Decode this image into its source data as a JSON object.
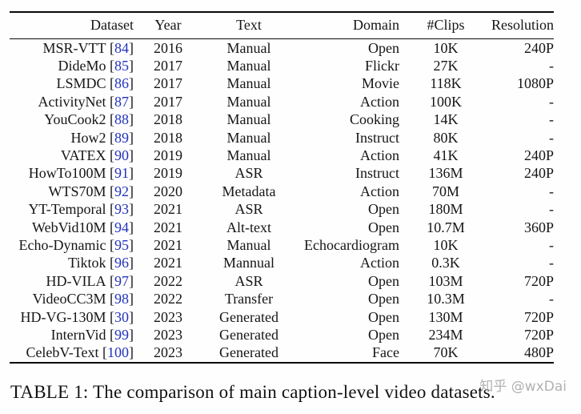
{
  "table": {
    "columns": [
      {
        "label": "Dataset",
        "align": "right"
      },
      {
        "label": "Year",
        "align": "center"
      },
      {
        "label": "Text",
        "align": "center"
      },
      {
        "label": "Domain",
        "align": "right"
      },
      {
        "label": "#Clips",
        "align": "center"
      },
      {
        "label": "Resolution",
        "align": "right"
      }
    ],
    "citation_brackets": {
      "open": "[",
      "close": "]"
    },
    "rows": [
      {
        "name": "MSR-VTT",
        "ref": "84",
        "year": "2016",
        "text": "Manual",
        "domain": "Open",
        "clips": "10K",
        "resolution": "240P"
      },
      {
        "name": "DideMo",
        "ref": "85",
        "year": "2017",
        "text": "Manual",
        "domain": "Flickr",
        "clips": "27K",
        "resolution": "-"
      },
      {
        "name": "LSMDC",
        "ref": "86",
        "year": "2017",
        "text": "Manual",
        "domain": "Movie",
        "clips": "118K",
        "resolution": "1080P"
      },
      {
        "name": "ActivityNet",
        "ref": "87",
        "year": "2017",
        "text": "Manual",
        "domain": "Action",
        "clips": "100K",
        "resolution": "-"
      },
      {
        "name": "YouCook2",
        "ref": "88",
        "year": "2018",
        "text": "Manual",
        "domain": "Cooking",
        "clips": "14K",
        "resolution": "-"
      },
      {
        "name": "How2",
        "ref": "89",
        "year": "2018",
        "text": "Manual",
        "domain": "Instruct",
        "clips": "80K",
        "resolution": "-"
      },
      {
        "name": "VATEX",
        "ref": "90",
        "year": "2019",
        "text": "Manual",
        "domain": "Action",
        "clips": "41K",
        "resolution": "240P"
      },
      {
        "name": "HowTo100M",
        "ref": "91",
        "year": "2019",
        "text": "ASR",
        "domain": "Instruct",
        "clips": "136M",
        "resolution": "240P"
      },
      {
        "name": "WTS70M",
        "ref": "92",
        "year": "2020",
        "text": "Metadata",
        "domain": "Action",
        "clips": "70M",
        "resolution": "-"
      },
      {
        "name": "YT-Temporal",
        "ref": "93",
        "year": "2021",
        "text": "ASR",
        "domain": "Open",
        "clips": "180M",
        "resolution": "-"
      },
      {
        "name": "WebVid10M",
        "ref": "94",
        "year": "2021",
        "text": "Alt-text",
        "domain": "Open",
        "clips": "10.7M",
        "resolution": "360P"
      },
      {
        "name": "Echo-Dynamic",
        "ref": "95",
        "year": "2021",
        "text": "Manual",
        "domain": "Echocardiogram",
        "clips": "10K",
        "resolution": "-"
      },
      {
        "name": "Tiktok",
        "ref": "96",
        "year": "2021",
        "text": "Mannual",
        "domain": "Action",
        "clips": "0.3K",
        "resolution": "-"
      },
      {
        "name": "HD-VILA",
        "ref": "97",
        "year": "2022",
        "text": "ASR",
        "domain": "Open",
        "clips": "103M",
        "resolution": "720P"
      },
      {
        "name": "VideoCC3M",
        "ref": "98",
        "year": "2022",
        "text": "Transfer",
        "domain": "Open",
        "clips": "10.3M",
        "resolution": "-"
      },
      {
        "name": "HD-VG-130M",
        "ref": "30",
        "year": "2023",
        "text": "Generated",
        "domain": "Open",
        "clips": "130M",
        "resolution": "720P"
      },
      {
        "name": "InternVid",
        "ref": "99",
        "year": "2023",
        "text": "Generated",
        "domain": "Open",
        "clips": "234M",
        "resolution": "720P"
      },
      {
        "name": "CelebV-Text",
        "ref": "100",
        "year": "2023",
        "text": "Generated",
        "domain": "Face",
        "clips": "70K",
        "resolution": "480P"
      }
    ]
  },
  "caption": {
    "text": "TABLE 1: The comparison of main caption-level video datasets."
  },
  "watermark": {
    "text": "知乎 @wxDai"
  },
  "colors": {
    "text": "#151515",
    "citation_blue": "#2233bb",
    "rule": "#0a0a0a",
    "watermark_gray": "#9e9e9e",
    "background": "#fefefe"
  }
}
